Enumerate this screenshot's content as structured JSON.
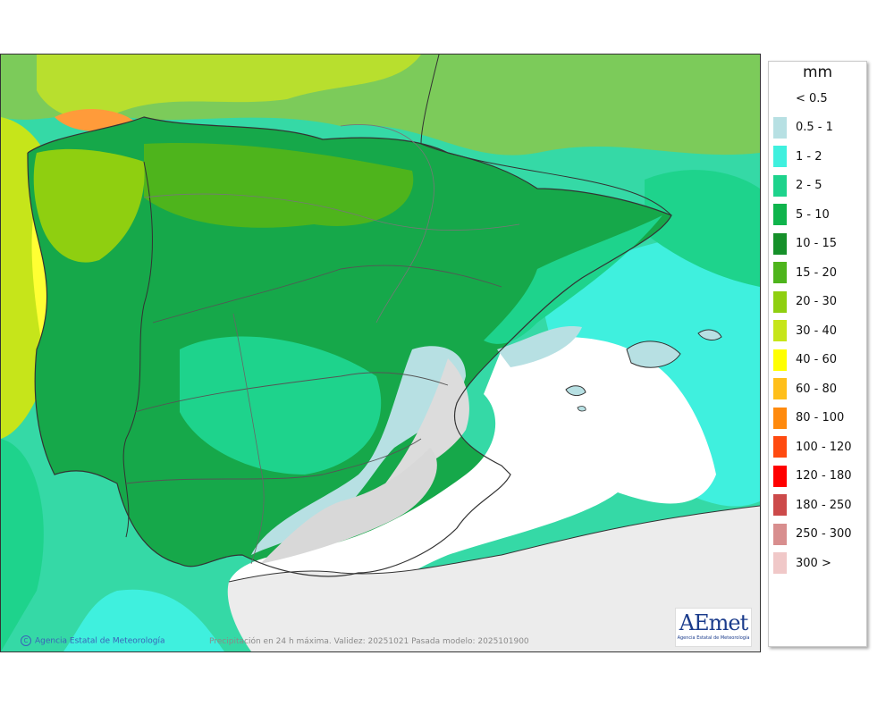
{
  "legend": {
    "unit": "mm",
    "items": [
      {
        "label": "< 0.5",
        "color": "#ffffff"
      },
      {
        "label": "0.5 - 1",
        "color": "#b7e0e3"
      },
      {
        "label": "1 - 2",
        "color": "#3ff0de"
      },
      {
        "label": "2 - 5",
        "color": "#1ed38c"
      },
      {
        "label": "5 - 10",
        "color": "#0fb44c"
      },
      {
        "label": "10 - 15",
        "color": "#16902a"
      },
      {
        "label": "15 - 20",
        "color": "#4eb41c"
      },
      {
        "label": "20 - 30",
        "color": "#8fcf10"
      },
      {
        "label": "30 - 40",
        "color": "#c6e51a"
      },
      {
        "label": "40 - 60",
        "color": "#ffff00"
      },
      {
        "label": "60 - 80",
        "color": "#ffbf1a"
      },
      {
        "label": "80 - 100",
        "color": "#ff8a0d"
      },
      {
        "label": "100 - 120",
        "color": "#ff4a10"
      },
      {
        "label": "120 - 180",
        "color": "#ff0000"
      },
      {
        "label": "180 - 250",
        "color": "#cc4a4a"
      },
      {
        "label": "250 - 300",
        "color": "#d88e8e"
      },
      {
        "label": "300 >",
        "color": "#f0c8c8"
      }
    ]
  },
  "map": {
    "credit": "Agencia Estatal de Meteorología",
    "caption": "Precipitación en 24 h máxima. Validez: 20251021 Pasada modelo: 2025101900",
    "logo_text": "AEmet",
    "logo_subtitle": "Agencia Estatal de Meteorología"
  }
}
